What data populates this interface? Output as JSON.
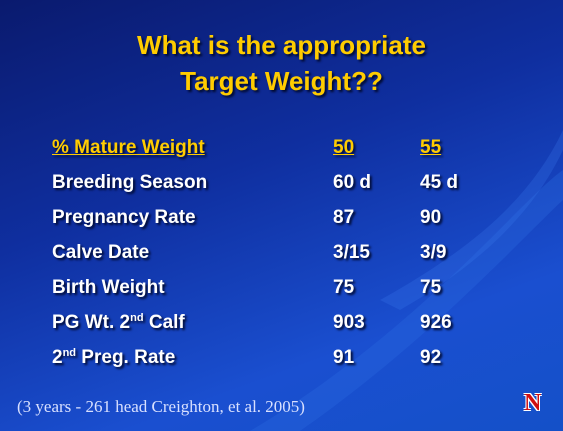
{
  "header": {
    "title_lines": [
      "What is the appropriate",
      "Target Weight??"
    ]
  },
  "table": {
    "columns": [
      "% Mature Weight",
      "50",
      "55"
    ],
    "rows": [
      [
        {
          "text": "Breeding Season"
        },
        {
          "text": "60 d"
        },
        {
          "text": "45 d"
        }
      ],
      [
        {
          "text": "Pregnancy Rate"
        },
        {
          "text": "87"
        },
        {
          "text": "90"
        }
      ],
      [
        {
          "text": "Calve Date"
        },
        {
          "text": "3/15"
        },
        {
          "text": "3/9"
        }
      ],
      [
        {
          "text": "Birth Weight"
        },
        {
          "text": "75"
        },
        {
          "text": "75"
        }
      ],
      [
        {
          "text": "PG Wt. 2",
          "sup": "nd",
          "after": " Calf"
        },
        {
          "text": "903"
        },
        {
          "text": "926"
        }
      ],
      [
        {
          "text": "2",
          "sup": "nd",
          "after": " Preg. Rate"
        },
        {
          "text": "91"
        },
        {
          "text": "92"
        }
      ]
    ]
  },
  "footer": {
    "citation": "(3 years - 261 head Creighton, et al. 2005)",
    "logo": "N"
  }
}
